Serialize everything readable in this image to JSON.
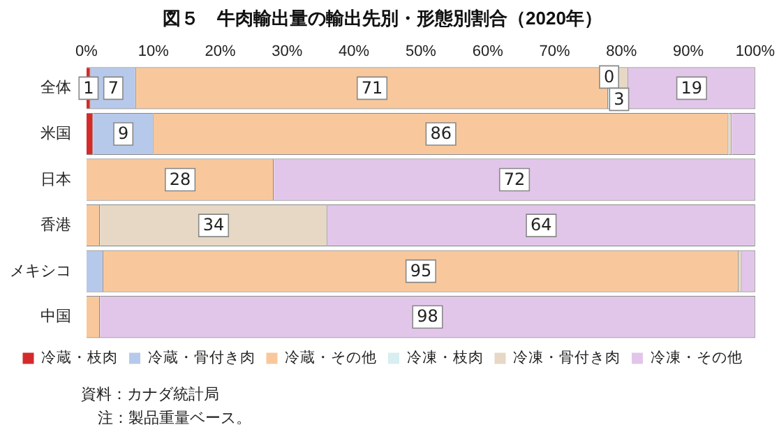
{
  "chart_data": {
    "type": "bar",
    "orientation": "horizontal",
    "stacked": true,
    "title": "図５　牛肉輸出量の輸出先別・形態別割合（2020年）",
    "categories": [
      "全体",
      "米国",
      "日本",
      "香港",
      "メキシコ",
      "中国"
    ],
    "series": [
      {
        "name": "冷蔵・枝肉",
        "color": "#d42a2a",
        "values": [
          0.6,
          1,
          0,
          0,
          0,
          0
        ],
        "value_labels": [
          "1",
          null,
          null,
          null,
          null,
          null
        ]
      },
      {
        "name": "冷蔵・骨付き肉",
        "color": "#b7c9ea",
        "values": [
          6.8,
          9,
          0,
          0,
          2.5,
          0
        ],
        "value_labels": [
          "7",
          "9",
          null,
          null,
          null,
          null
        ]
      },
      {
        "name": "冷蔵・その他",
        "color": "#f8c89c",
        "values": [
          70.6,
          86,
          28,
          2,
          95,
          2
        ],
        "value_labels": [
          "71",
          "86",
          "28",
          null,
          "95",
          null
        ]
      },
      {
        "name": "冷凍・枝肉",
        "color": "#d8eef0",
        "values": [
          0.3,
          0,
          0,
          0,
          0,
          0
        ],
        "value_labels": [
          "0",
          null,
          null,
          null,
          null,
          null
        ]
      },
      {
        "name": "冷凍・骨付き肉",
        "color": "#e6d8c4",
        "values": [
          2.7,
          0.5,
          0,
          34,
          0.5,
          0
        ],
        "value_labels": [
          "3",
          null,
          null,
          "34",
          null,
          null
        ]
      },
      {
        "name": "冷凍・その他",
        "color": "#e2c6ea",
        "values": [
          19,
          3.5,
          72,
          64,
          2,
          98
        ],
        "value_labels": [
          "19",
          null,
          "72",
          "64",
          null,
          "98"
        ]
      }
    ],
    "xlim": [
      0,
      100
    ],
    "xticks": [
      {
        "value": 0,
        "label": "0%"
      },
      {
        "value": 10,
        "label": "10%"
      },
      {
        "value": 20,
        "label": "20%"
      },
      {
        "value": 30,
        "label": "30%"
      },
      {
        "value": 40,
        "label": "40%"
      },
      {
        "value": 50,
        "label": "50%"
      },
      {
        "value": 60,
        "label": "60%"
      },
      {
        "value": 70,
        "label": "70%"
      },
      {
        "value": 80,
        "label": "80%"
      },
      {
        "value": 90,
        "label": "90%"
      },
      {
        "value": 100,
        "label": "100%"
      }
    ],
    "legend": "bottom",
    "grid": false,
    "annotations": [
      "資料：カナダ統計局",
      "注：製品重量ベース。"
    ]
  }
}
